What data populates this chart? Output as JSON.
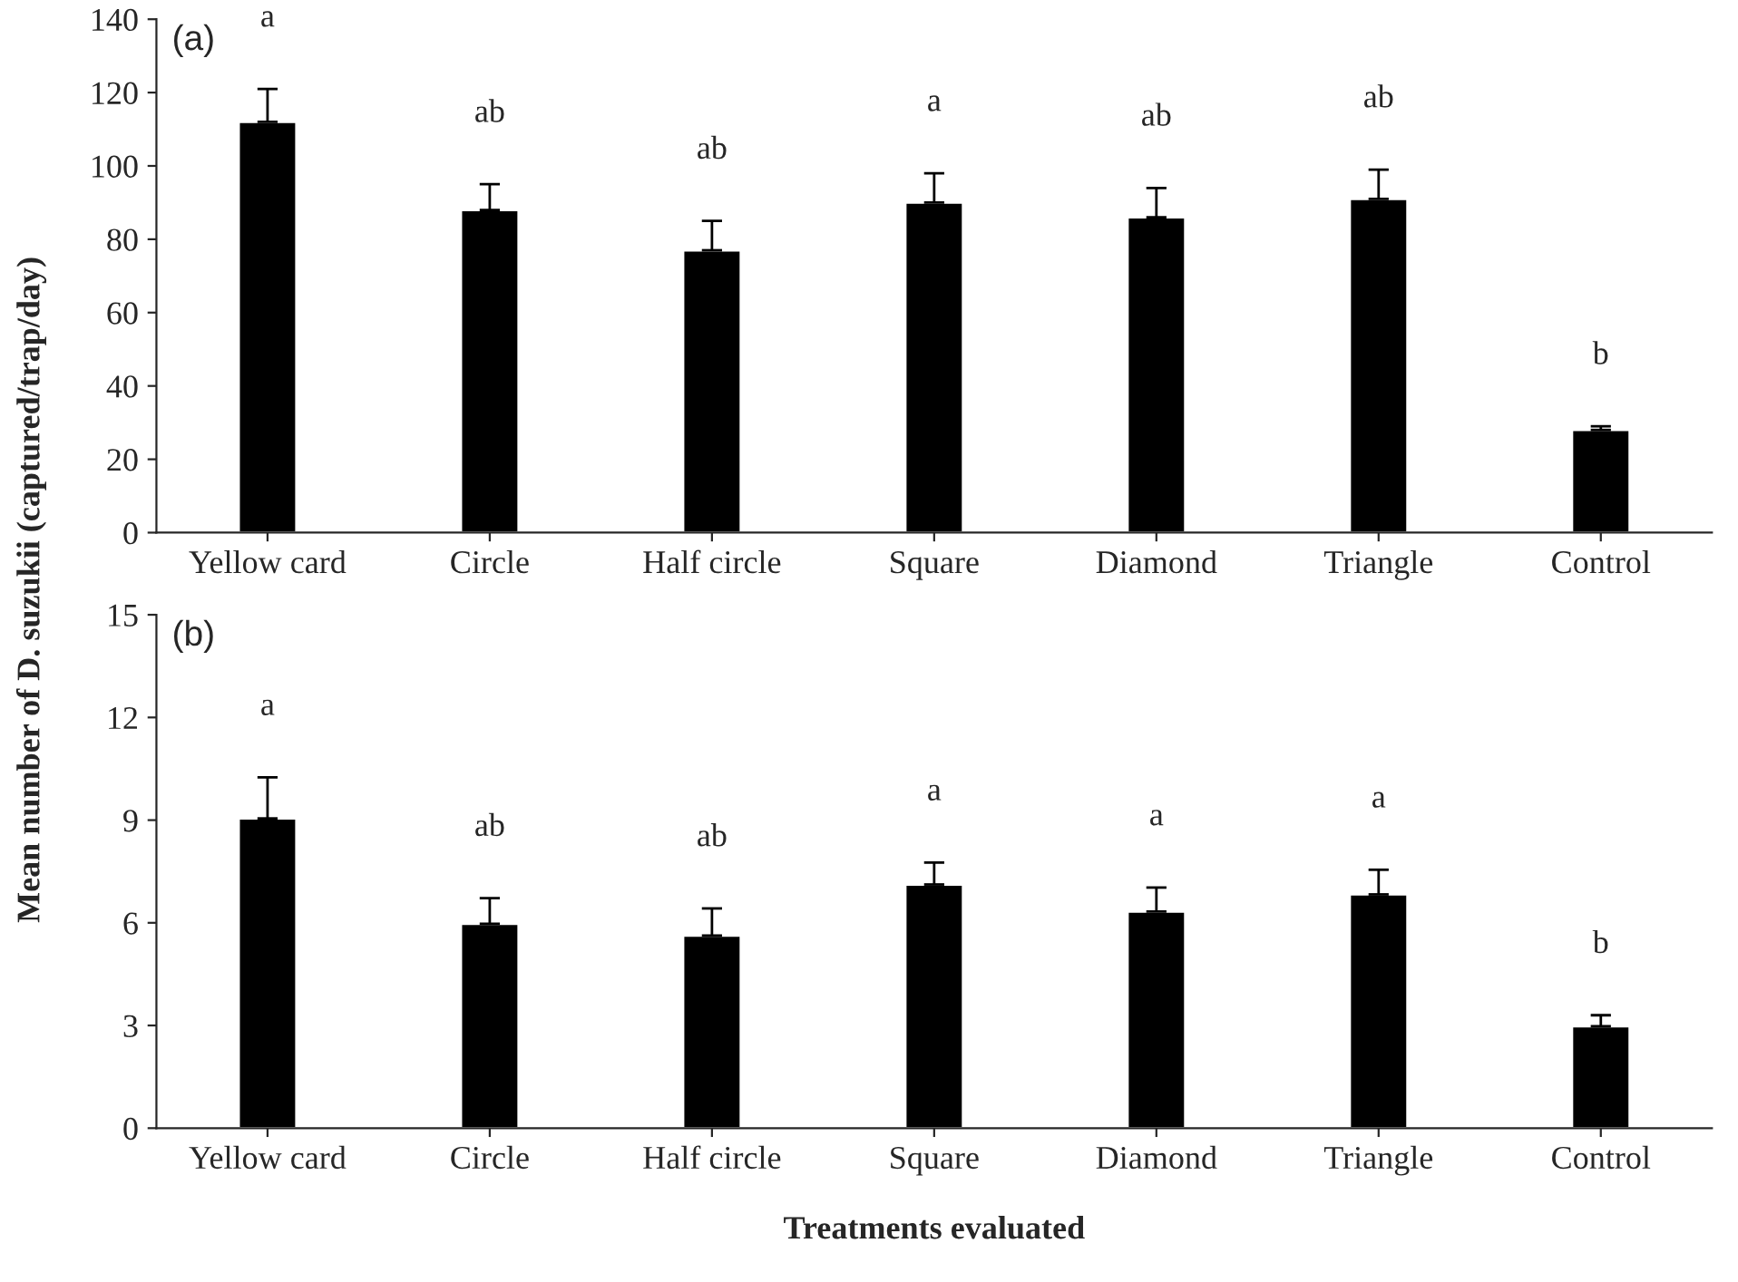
{
  "chart_data": [
    {
      "type": "bar",
      "ylabel": "Mean number of D. suzukii (captured/trap/day)",
      "categories": [
        "Yellow card",
        "Circle",
        "Half circle",
        "Square",
        "Diamond",
        "Triangle",
        "Control"
      ],
      "values": [
        112,
        88,
        77,
        90,
        86,
        91,
        28
      ],
      "color": "#000000",
      "errors": [
        [
          112,
          121
        ],
        [
          88,
          95
        ],
        [
          77,
          85
        ],
        [
          90,
          98
        ],
        [
          86,
          94
        ],
        [
          91,
          99
        ],
        [
          28,
          29
        ]
      ],
      "ylim": [
        0,
        140
      ],
      "yticks": [
        0,
        20,
        40,
        60,
        80,
        100,
        120,
        140
      ],
      "grid": false,
      "legend": false,
      "annotations": [
        "(a)",
        "a",
        "ab",
        "ab",
        "a",
        "ab",
        "ab",
        "b"
      ]
    },
    {
      "type": "bar",
      "xlabel": "Treatments evaluated",
      "categories": [
        "Yellow card",
        "Circle",
        "Half circle",
        "Square",
        "Diamond",
        "Triangle",
        "Control"
      ],
      "values": [
        9.05,
        5.97,
        5.63,
        7.12,
        6.33,
        6.83,
        2.98
      ],
      "color": "#000000",
      "errors": [
        [
          9.05,
          10.25
        ],
        [
          5.97,
          6.72
        ],
        [
          5.63,
          6.42
        ],
        [
          7.12,
          7.76
        ],
        [
          6.33,
          7.03
        ],
        [
          6.83,
          7.55
        ],
        [
          2.98,
          3.3
        ]
      ],
      "ylim": [
        0,
        15
      ],
      "yticks": [
        0,
        3,
        6,
        9,
        12,
        15
      ],
      "grid": false,
      "legend": false,
      "annotations": [
        "(b)",
        "a",
        "ab",
        "ab",
        "a",
        "a",
        "a",
        "b"
      ]
    }
  ]
}
